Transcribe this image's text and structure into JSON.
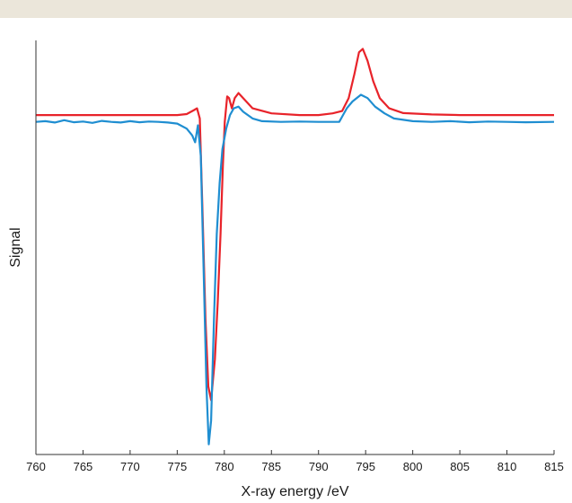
{
  "chart_data": {
    "type": "line",
    "title": "",
    "xlabel": "X-ray energy /eV",
    "ylabel": "Signal",
    "xlim": [
      760,
      815
    ],
    "ylim": [
      -1.0,
      0.22
    ],
    "xticks": [
      760,
      765,
      770,
      775,
      780,
      785,
      790,
      795,
      800,
      805,
      810,
      815
    ],
    "yticks_shown": false,
    "grid": false,
    "legend": "none",
    "series": [
      {
        "color": "#e8232a",
        "points": [
          [
            760,
            0.0
          ],
          [
            775,
            0.0
          ],
          [
            776,
            0.003
          ],
          [
            776.8,
            0.015
          ],
          [
            777.1,
            0.02
          ],
          [
            777.4,
            -0.01
          ],
          [
            777.7,
            -0.3
          ],
          [
            778,
            -0.6
          ],
          [
            778.3,
            -0.8
          ],
          [
            778.6,
            -0.84
          ],
          [
            779,
            -0.72
          ],
          [
            779.3,
            -0.55
          ],
          [
            779.6,
            -0.35
          ],
          [
            779.85,
            -0.15
          ],
          [
            780.05,
            -0.02
          ],
          [
            780.3,
            0.055
          ],
          [
            780.5,
            0.05
          ],
          [
            780.8,
            0.02
          ],
          [
            781.1,
            0.05
          ],
          [
            781.5,
            0.065
          ],
          [
            782,
            0.05
          ],
          [
            783,
            0.02
          ],
          [
            785,
            0.005
          ],
          [
            788,
            0.0
          ],
          [
            790,
            0.0
          ],
          [
            791.5,
            0.005
          ],
          [
            792.5,
            0.012
          ],
          [
            793.2,
            0.05
          ],
          [
            793.8,
            0.12
          ],
          [
            794.3,
            0.185
          ],
          [
            794.7,
            0.195
          ],
          [
            795.2,
            0.16
          ],
          [
            795.8,
            0.1
          ],
          [
            796.5,
            0.05
          ],
          [
            797.5,
            0.02
          ],
          [
            799,
            0.006
          ],
          [
            802,
            0.002
          ],
          [
            805,
            0.0
          ],
          [
            815,
            0.0
          ]
        ]
      },
      {
        "color": "#1f8ed1",
        "points": [
          [
            760,
            -0.02
          ],
          [
            761,
            -0.018
          ],
          [
            762,
            -0.022
          ],
          [
            763,
            -0.015
          ],
          [
            764,
            -0.021
          ],
          [
            765,
            -0.019
          ],
          [
            766,
            -0.023
          ],
          [
            767,
            -0.017
          ],
          [
            768,
            -0.02
          ],
          [
            769,
            -0.022
          ],
          [
            770,
            -0.018
          ],
          [
            771,
            -0.021
          ],
          [
            772,
            -0.019
          ],
          [
            773,
            -0.02
          ],
          [
            774,
            -0.022
          ],
          [
            775,
            -0.025
          ],
          [
            776,
            -0.04
          ],
          [
            776.6,
            -0.06
          ],
          [
            776.9,
            -0.08
          ],
          [
            777.2,
            -0.03
          ],
          [
            777.5,
            -0.12
          ],
          [
            777.8,
            -0.45
          ],
          [
            778.1,
            -0.8
          ],
          [
            778.35,
            -0.97
          ],
          [
            778.6,
            -0.9
          ],
          [
            778.9,
            -0.6
          ],
          [
            779.2,
            -0.35
          ],
          [
            779.5,
            -0.2
          ],
          [
            779.8,
            -0.1
          ],
          [
            780.2,
            -0.04
          ],
          [
            780.6,
            0.0
          ],
          [
            781,
            0.02
          ],
          [
            781.5,
            0.025
          ],
          [
            782,
            0.01
          ],
          [
            783,
            -0.01
          ],
          [
            784,
            -0.018
          ],
          [
            786,
            -0.02
          ],
          [
            788,
            -0.019
          ],
          [
            790,
            -0.02
          ],
          [
            791.5,
            -0.02
          ],
          [
            792.2,
            -0.02
          ],
          [
            792.6,
            0.0
          ],
          [
            793,
            0.02
          ],
          [
            793.6,
            0.04
          ],
          [
            794.5,
            0.06
          ],
          [
            795.2,
            0.05
          ],
          [
            796,
            0.025
          ],
          [
            797,
            0.005
          ],
          [
            798,
            -0.01
          ],
          [
            800,
            -0.018
          ],
          [
            802,
            -0.02
          ],
          [
            804,
            -0.018
          ],
          [
            806,
            -0.021
          ],
          [
            808,
            -0.019
          ],
          [
            810,
            -0.02
          ],
          [
            812,
            -0.021
          ],
          [
            815,
            -0.02
          ]
        ]
      }
    ]
  }
}
